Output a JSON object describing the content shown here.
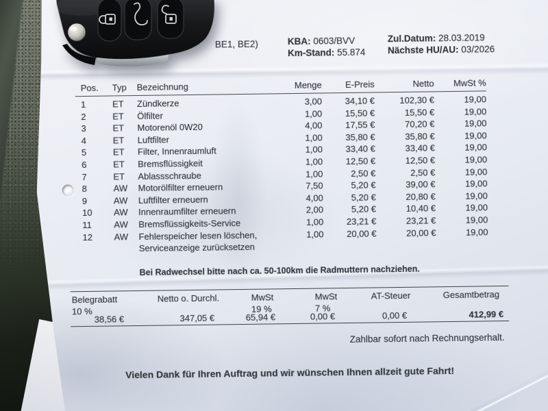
{
  "header": {
    "vehicle_note": "BE1, BE2)",
    "kba_label": "KBA:",
    "kba_value": "0603/BVV",
    "km_label": "Km-Stand:",
    "km_value": "55.874",
    "zul_label": "Zul.Datum:",
    "zul_value": "28.03.2019",
    "hu_label": "Nächste HU/AU:",
    "hu_value": "03/2026"
  },
  "items_table": {
    "columns": [
      "Pos.",
      "Typ",
      "Bezeichnung",
      "Menge",
      "E-Preis",
      "Netto",
      "MwSt %"
    ],
    "rows": [
      {
        "pos": "1",
        "typ": "ET",
        "bez": "Zündkerze",
        "menge": "3,00",
        "epreis": "34,10 €",
        "netto": "102,30 €",
        "mwst": "19,00"
      },
      {
        "pos": "2",
        "typ": "ET",
        "bez": "Ölfilter",
        "menge": "1,00",
        "epreis": "15,50 €",
        "netto": "15,50 €",
        "mwst": "19,00"
      },
      {
        "pos": "3",
        "typ": "ET",
        "bez": "Motorenöl 0W20",
        "menge": "4,00",
        "epreis": "17,55 €",
        "netto": "70,20 €",
        "mwst": "19,00"
      },
      {
        "pos": "4",
        "typ": "ET",
        "bez": "Luftfilter",
        "menge": "1,00",
        "epreis": "35,80 €",
        "netto": "35,80 €",
        "mwst": "19,00"
      },
      {
        "pos": "5",
        "typ": "ET",
        "bez": "Filter, Innenraumluft",
        "menge": "1,00",
        "epreis": "33,40 €",
        "netto": "33,40 €",
        "mwst": "19,00"
      },
      {
        "pos": "6",
        "typ": "ET",
        "bez": "Bremsflüssigkeit",
        "menge": "1,00",
        "epreis": "12,50 €",
        "netto": "12,50 €",
        "mwst": "19,00"
      },
      {
        "pos": "7",
        "typ": "ET",
        "bez": "Ablassschraube",
        "menge": "1,00",
        "epreis": "2,50 €",
        "netto": "2,50 €",
        "mwst": "19,00"
      },
      {
        "pos": "8",
        "typ": "AW",
        "bez": "Motorölfilter erneuern",
        "menge": "7,50",
        "epreis": "5,20 €",
        "netto": "39,00 €",
        "mwst": "19,00"
      },
      {
        "pos": "9",
        "typ": "AW",
        "bez": "Luftfilter erneuern",
        "menge": "4,00",
        "epreis": "5,20 €",
        "netto": "20,80 €",
        "mwst": "19,00"
      },
      {
        "pos": "10",
        "typ": "AW",
        "bez": "Innenraumfilter erneuern",
        "menge": "2,00",
        "epreis": "5,20 €",
        "netto": "10,40 €",
        "mwst": "19,00"
      },
      {
        "pos": "11",
        "typ": "AW",
        "bez": "Bremsflüssigkeits-Service",
        "menge": "1,00",
        "epreis": "23,21 €",
        "netto": "23,21 €",
        "mwst": "19,00"
      },
      {
        "pos": "12",
        "typ": "AW",
        "bez": "Fehlerspeicher lesen löschen,",
        "bez2": "Serviceanzeige zurücksetzen",
        "menge": "1,00",
        "epreis": "20,00 €",
        "netto": "20,00 €",
        "mwst": "19,00"
      }
    ]
  },
  "wheel_note": "Bei Radwechsel bitte nach ca. 50-100km die Radmuttern nachziehen.",
  "totals": {
    "columns": [
      {
        "label": "Belegrabatt",
        "sub": "10 %",
        "value": "38,56 €"
      },
      {
        "label": "Netto o. Durchl.",
        "sub": "",
        "value": "347,05 €"
      },
      {
        "label": "MwSt",
        "sub": "19 %",
        "value": "65,94 €"
      },
      {
        "label": "MwSt",
        "sub": "7 %",
        "value": "0,00 €"
      },
      {
        "label": "AT-Steuer",
        "sub": "",
        "value": "0,00 €"
      },
      {
        "label": "Gesamtbetrag",
        "sub": "",
        "value": "412,99 €"
      }
    ]
  },
  "payment_note": "Zahlbar sofort nach Rechnungserhalt.",
  "thanks_note": "Vielen Dank für Ihren Auftrag und wir wünschen Ihnen allzeit gute Fahrt!",
  "key_fob": {
    "buttons": [
      "lock-icon",
      "car-trunk-icon",
      "unlock-icon"
    ]
  },
  "colors": {
    "paper": "#e9ecf2",
    "ink": "#34373d",
    "desk": "#6f7468"
  }
}
